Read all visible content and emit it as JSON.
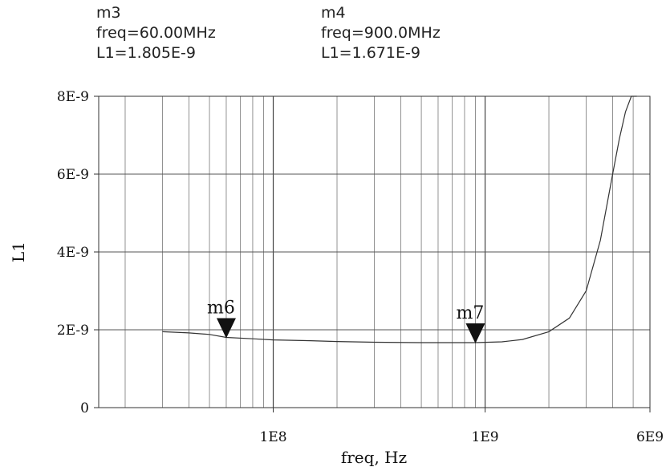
{
  "markers_readout": [
    {
      "name": "m3",
      "freq": "freq=60.00MHz",
      "value": "L1=1.805E-9"
    },
    {
      "name": "m4",
      "freq": "freq=900.0MHz",
      "value": "L1=1.671E-9"
    }
  ],
  "chart_data": {
    "type": "line",
    "x_scale": "log",
    "xlabel": "freq, Hz",
    "ylabel": "L1",
    "xlim": [
      15000000,
      6000000000
    ],
    "ylim": [
      0,
      8e-09
    ],
    "x_tick_labels": [
      {
        "value": 100000000,
        "label": "1E8"
      },
      {
        "value": 1000000000,
        "label": "1E9"
      },
      {
        "value": 6000000000,
        "label": "6E9"
      }
    ],
    "y_tick_labels": [
      {
        "value": 0,
        "label": "0"
      },
      {
        "value": 2e-09,
        "label": "2E-9"
      },
      {
        "value": 4e-09,
        "label": "4E-9"
      },
      {
        "value": 6e-09,
        "label": "6E-9"
      },
      {
        "value": 8e-09,
        "label": "8E-9"
      }
    ],
    "grid": true,
    "series": [
      {
        "name": "L1",
        "x": [
          30000000,
          40000000,
          50000000,
          60000000,
          80000000,
          100000000,
          150000000,
          200000000,
          300000000,
          500000000,
          700000000,
          900000000,
          1200000000,
          1500000000,
          2000000000,
          2500000000,
          3000000000,
          3500000000,
          4000000000,
          4300000000,
          4600000000,
          4900000000,
          5200000000
        ],
        "y": [
          1.95e-09,
          1.92e-09,
          1.88e-09,
          1.805e-09,
          1.77e-09,
          1.74e-09,
          1.72e-09,
          1.7e-09,
          1.68e-09,
          1.67e-09,
          1.67e-09,
          1.671e-09,
          1.69e-09,
          1.75e-09,
          1.95e-09,
          2.3e-09,
          3e-09,
          4.3e-09,
          6e-09,
          6.9e-09,
          7.6e-09,
          8e-09,
          8e-09
        ]
      }
    ],
    "markers": [
      {
        "label": "m6",
        "x": 60000000,
        "y": 1.805e-09
      },
      {
        "label": "m7",
        "x": 900000000,
        "y": 1.671e-09
      }
    ]
  }
}
